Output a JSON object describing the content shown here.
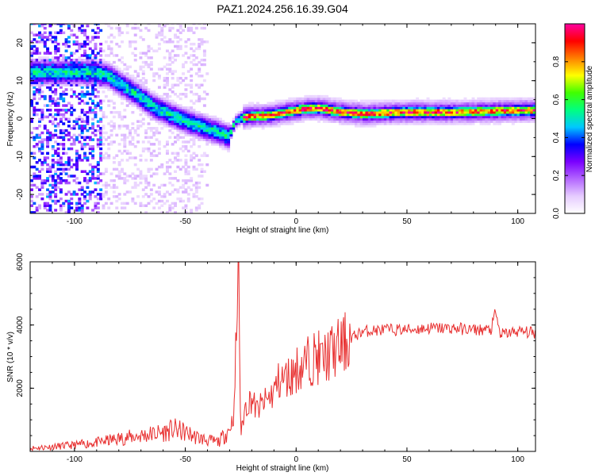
{
  "title": "PAZ1.2024.256.16.39.G04",
  "chart_data": [
    {
      "type": "heatmap",
      "xlabel": "Height of straight line (km)",
      "ylabel": "Frequency (Hz)",
      "xlim": [
        -120,
        108
      ],
      "ylim": [
        -25,
        25
      ],
      "x_ticks": [
        -100,
        -50,
        0,
        50,
        100
      ],
      "y_ticks": [
        -20,
        -10,
        0,
        10,
        20
      ],
      "colorbar": {
        "label": "Normalized spectral amplitude",
        "range": [
          0,
          1
        ],
        "ticks": [
          "0.0",
          "0.2",
          "0.4",
          "0.6",
          "0.8"
        ],
        "colors": [
          "#ffffff",
          "#e6ccff",
          "#b366ff",
          "#7a00ff",
          "#0000ff",
          "#00c8ff",
          "#00ff80",
          "#40ff00",
          "#ffff00",
          "#ff8000",
          "#ff0000",
          "#ff00a0"
        ]
      },
      "ridge": {
        "x": [
          -92,
          -85,
          -80,
          -72,
          -65,
          -58,
          -50,
          -45,
          -40,
          -35,
          -31,
          -28,
          -25,
          -20,
          -15,
          -10,
          -5,
          0,
          5,
          10,
          15,
          20,
          30,
          50,
          70,
          90,
          107
        ],
        "y": [
          12,
          11,
          9,
          6,
          3,
          1,
          -1,
          -2,
          -3,
          -4,
          -5,
          -1,
          0,
          0.5,
          0.5,
          1,
          1.5,
          2,
          2.5,
          2.5,
          2,
          1.5,
          1,
          1.5,
          1.5,
          1.8,
          2
        ]
      }
    },
    {
      "type": "line",
      "xlabel": "Height of straight line (km)",
      "ylabel": "SNR (10 * v/v)",
      "xlim": [
        -120,
        108
      ],
      "ylim": [
        0,
        6000
      ],
      "x_ticks": [
        -100,
        -50,
        0,
        50,
        100
      ],
      "y_ticks": [
        2000,
        4000,
        6000
      ],
      "color": "#e83030",
      "series": [
        {
          "x": [
            -120,
            -110,
            -100,
            -90,
            -80,
            -70,
            -60,
            -55,
            -50,
            -45,
            -40,
            -35,
            -30,
            -28,
            -26,
            -25,
            -23,
            -20,
            -18,
            -15,
            -12,
            -10,
            -8,
            -5,
            -2,
            0,
            3,
            6,
            9,
            12,
            15,
            18,
            20,
            25,
            30,
            40,
            50,
            60,
            70,
            80,
            88,
            90,
            92,
            100,
            108
          ],
          "y": [
            100,
            150,
            200,
            280,
            400,
            500,
            600,
            700,
            600,
            450,
            350,
            300,
            700,
            1200,
            6000,
            500,
            1400,
            1700,
            1300,
            1500,
            1700,
            1900,
            2200,
            2300,
            2400,
            2600,
            2700,
            2900,
            3000,
            2900,
            3100,
            3200,
            3300,
            3600,
            3800,
            3850,
            3850,
            3900,
            3900,
            3850,
            3850,
            4400,
            3700,
            3800,
            3750
          ]
        }
      ]
    }
  ]
}
